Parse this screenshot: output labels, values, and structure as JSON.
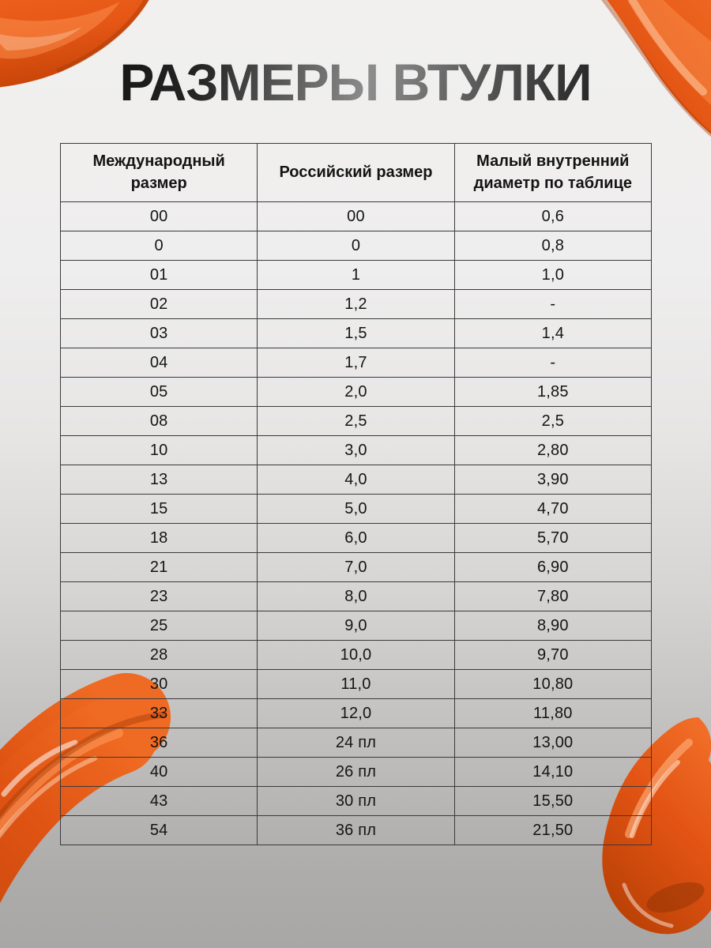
{
  "page": {
    "title": "РАЗМЕРЫ ВТУЛКИ"
  },
  "table": {
    "columns": [
      "Международный размер",
      "Российский размер",
      "Малый внутренний диаметр по таблице"
    ],
    "rows": [
      [
        "00",
        "00",
        "0,6"
      ],
      [
        "0",
        "0",
        "0,8"
      ],
      [
        "01",
        "1",
        "1,0"
      ],
      [
        "02",
        "1,2",
        "-"
      ],
      [
        "03",
        "1,5",
        "1,4"
      ],
      [
        "04",
        "1,7",
        "-"
      ],
      [
        "05",
        "2,0",
        "1,85"
      ],
      [
        "08",
        "2,5",
        "2,5"
      ],
      [
        "10",
        "3,0",
        "2,80"
      ],
      [
        "13",
        "4,0",
        "3,90"
      ],
      [
        "15",
        "5,0",
        "4,70"
      ],
      [
        "18",
        "6,0",
        "5,70"
      ],
      [
        "21",
        "7,0",
        "6,90"
      ],
      [
        "23",
        "8,0",
        "7,80"
      ],
      [
        "25",
        "9,0",
        "8,90"
      ],
      [
        "28",
        "10,0",
        "9,70"
      ],
      [
        "30",
        "11,0",
        "10,80"
      ],
      [
        "33",
        "12,0",
        "11,80"
      ],
      [
        "36",
        "24 пл",
        "13,00"
      ],
      [
        "40",
        "26 пл",
        "14,10"
      ],
      [
        "43",
        "30 пл",
        "15,50"
      ],
      [
        "54",
        "36 пл",
        "21,50"
      ]
    ]
  },
  "colors": {
    "accent_orange": "#e85a16",
    "accent_orange_dark": "#c24308",
    "accent_orange_light": "#ff9a58",
    "background_top": "#f1f0ef",
    "background_bottom": "#a8a7a6",
    "table_border": "#3a3a3a",
    "text": "#141414"
  },
  "decorations": [
    {
      "name": "paint-smear-top-left"
    },
    {
      "name": "paint-smear-top-right"
    },
    {
      "name": "paint-smear-bottom-left"
    },
    {
      "name": "paint-drop-bottom-right"
    }
  ]
}
